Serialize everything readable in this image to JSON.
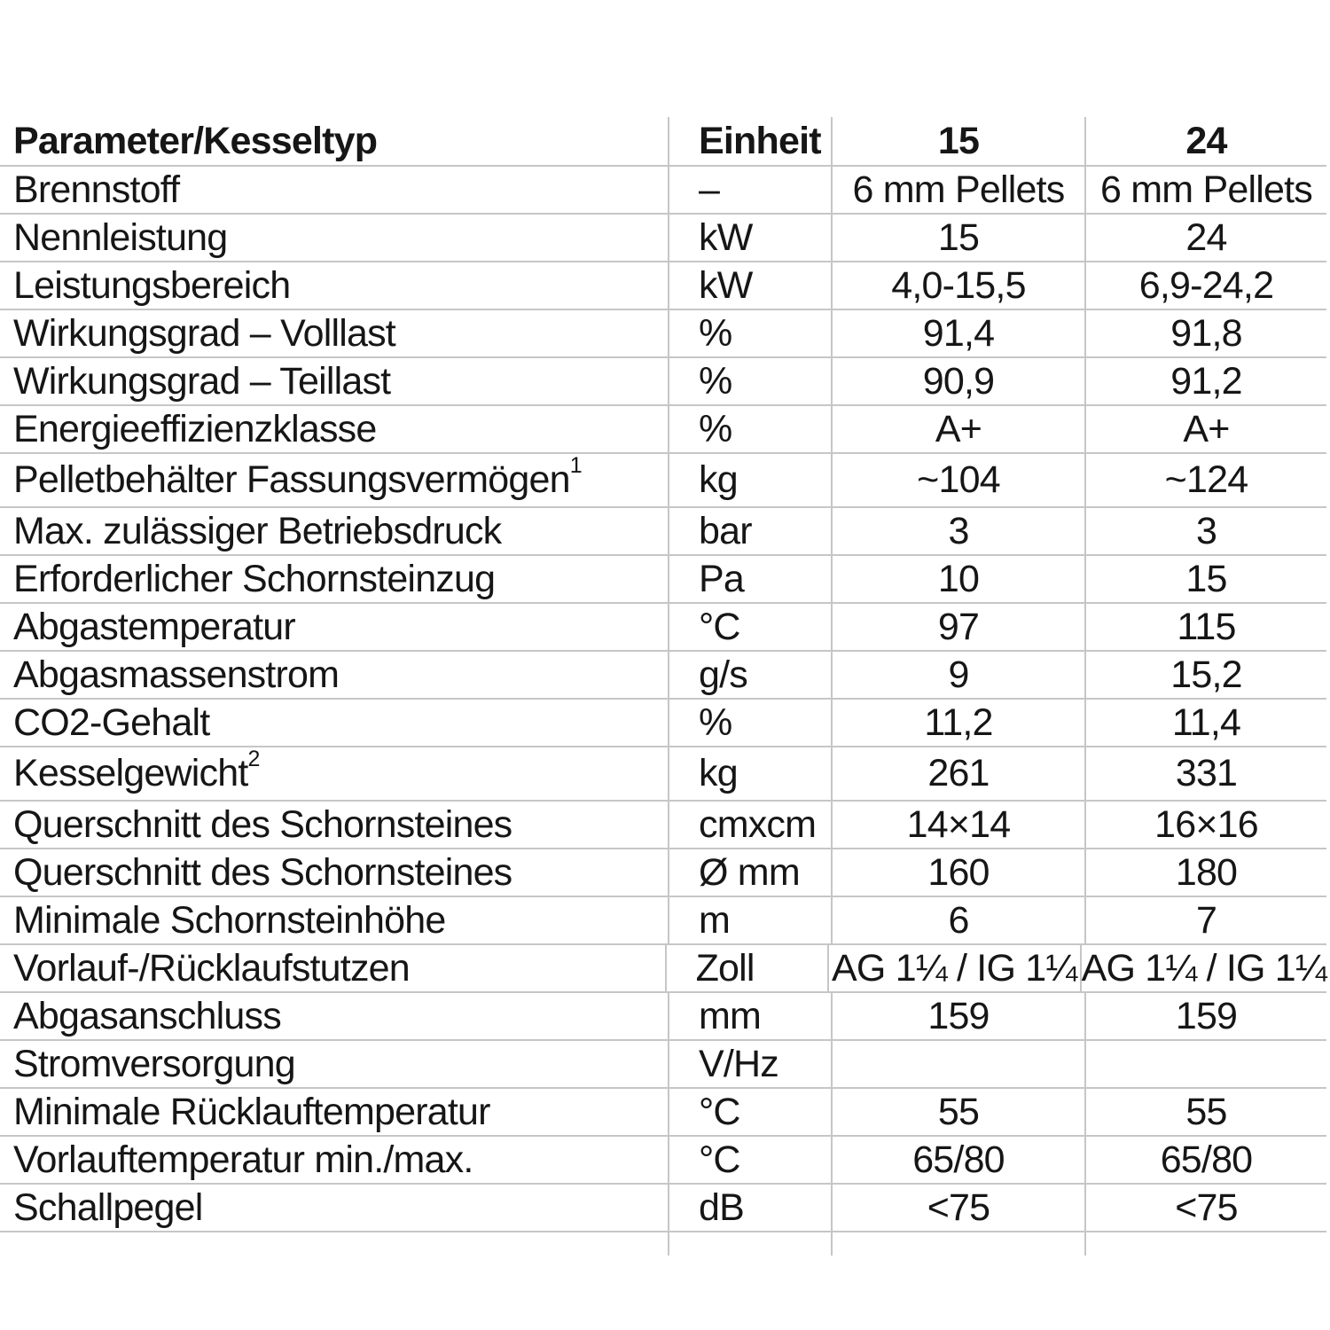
{
  "table": {
    "header": {
      "param": "Parameter/Kesseltyp",
      "unit": "Einheit",
      "col15": "15",
      "col24": "24"
    },
    "rows": [
      {
        "label": "Brennstoff",
        "sup": "",
        "unit": "–",
        "v15": "6 mm Pellets",
        "v24": "6 mm Pellets"
      },
      {
        "label": "Nennleistung",
        "sup": "",
        "unit": "kW",
        "v15": "15",
        "v24": "24"
      },
      {
        "label": "Leistungsbereich",
        "sup": "",
        "unit": "kW",
        "v15": "4,0-15,5",
        "v24": "6,9-24,2"
      },
      {
        "label": "Wirkungsgrad – Volllast",
        "sup": "",
        "unit": "%",
        "v15": "91,4",
        "v24": "91,8"
      },
      {
        "label": "Wirkungsgrad – Teillast",
        "sup": "",
        "unit": "%",
        "v15": "90,9",
        "v24": "91,2"
      },
      {
        "label": "Energieeffizienzklasse",
        "sup": "",
        "unit": "%",
        "v15": "A+",
        "v24": "A+"
      },
      {
        "label": "Pelletbehälter Fassungsvermögen",
        "sup": "1",
        "unit": "kg",
        "v15": "~104",
        "v24": "~124"
      },
      {
        "label": "Max. zulässiger Betriebsdruck",
        "sup": "",
        "unit": "bar",
        "v15": "3",
        "v24": "3"
      },
      {
        "label": "Erforderlicher Schornsteinzug",
        "sup": "",
        "unit": "Pa",
        "v15": "10",
        "v24": "15"
      },
      {
        "label": "Abgastemperatur",
        "sup": "",
        "unit": "°C",
        "v15": "97",
        "v24": "115"
      },
      {
        "label": "Abgasmassenstrom",
        "sup": "",
        "unit": "g/s",
        "v15": "9",
        "v24": "15,2"
      },
      {
        "label": "CO2-Gehalt",
        "sup": "",
        "unit": "%",
        "v15": "11,2",
        "v24": "11,4"
      },
      {
        "label": "Kesselgewicht",
        "sup": "2",
        "unit": "kg",
        "v15": "261",
        "v24": "331"
      },
      {
        "label": "Querschnitt des Schornsteines",
        "sup": "",
        "unit": "cmxcm",
        "v15": "14×14",
        "v24": "16×16"
      },
      {
        "label": "Querschnitt des Schornsteines",
        "sup": "",
        "unit": "Ø mm",
        "v15": "160",
        "v24": "180"
      },
      {
        "label": "Minimale Schornsteinhöhe",
        "sup": "",
        "unit": "m",
        "v15": "6",
        "v24": "7"
      },
      {
        "label": "Vorlauf-/Rücklaufstutzen",
        "sup": "",
        "unit": "Zoll",
        "v15": "AG 1¼ / IG 1¼",
        "v24": "AG 1¼ / IG 1¼"
      },
      {
        "label": "Abgasanschluss",
        "sup": "",
        "unit": "mm",
        "v15": "159",
        "v24": "159"
      },
      {
        "label": "Stromversorgung",
        "sup": "",
        "unit": "V/Hz",
        "v15": "",
        "v24": ""
      },
      {
        "label": "Minimale Rücklauftemperatur",
        "sup": "",
        "unit": "°C",
        "v15": "55",
        "v24": "55"
      },
      {
        "label": "Vorlauftemperatur min./max.",
        "sup": "",
        "unit": "°C",
        "v15": "65/80",
        "v24": "65/80"
      },
      {
        "label": "Schallpegel",
        "sup": "",
        "unit": "dB",
        "v15": "<75",
        "v24": "<75"
      }
    ]
  }
}
